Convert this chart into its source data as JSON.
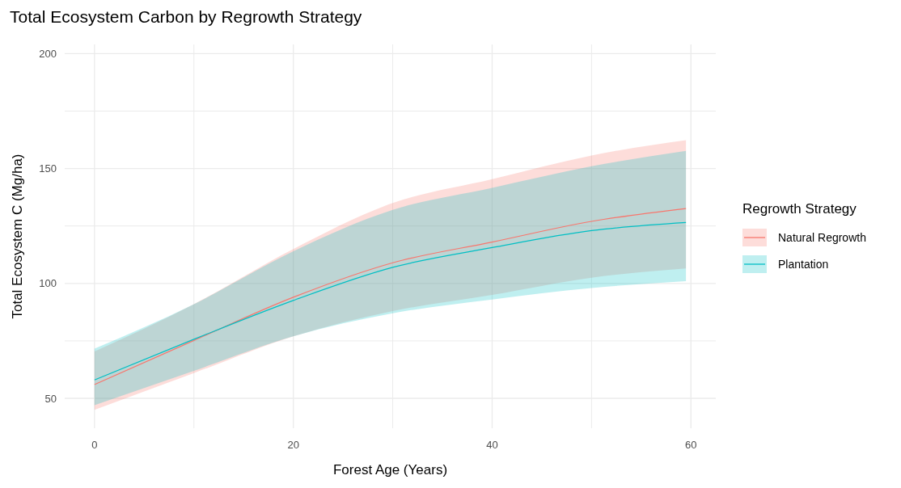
{
  "chart_data": {
    "type": "line",
    "title": "Total Ecosystem Carbon by Regrowth Strategy",
    "xlabel": "Forest Age (Years)",
    "ylabel": "Total Ecosystem C (Mg/ha)",
    "legend_title": "Regrowth Strategy",
    "legend": "right",
    "grid": true,
    "xlim": [
      -3,
      62.5
    ],
    "xticks": [
      0,
      {
        "value": 10,
        "label": null
      },
      20,
      {
        "value": 30,
        "label": null
      },
      40,
      {
        "value": 50,
        "label": null
      },
      60
    ],
    "ylim": [
      37,
      204
    ],
    "yticks": [
      50,
      {
        "value": 75,
        "label": null
      },
      100,
      {
        "value": 125,
        "label": null
      },
      150,
      {
        "value": 175,
        "label": null
      },
      200
    ],
    "x": [
      0,
      10,
      20,
      30,
      40,
      50,
      59.5
    ],
    "series": [
      {
        "name": "Natural Regrowth",
        "color": "#f8766d",
        "values": [
          56,
          75.2,
          94,
          109,
          118,
          127,
          132.6
        ],
        "lower": [
          45,
          61,
          77,
          88,
          95,
          102.5,
          106.5
        ],
        "upper": [
          70.4,
          91,
          115,
          135,
          145.4,
          155.7,
          162.3
        ]
      },
      {
        "name": "Plantation",
        "color": "#00bfc4",
        "values": [
          58,
          75.7,
          92.6,
          107,
          115.6,
          123,
          126.5
        ],
        "lower": [
          47,
          62,
          77,
          87,
          93,
          98,
          101
        ],
        "upper": [
          71.6,
          91,
          114,
          132,
          141.6,
          151,
          157.7
        ]
      }
    ]
  }
}
